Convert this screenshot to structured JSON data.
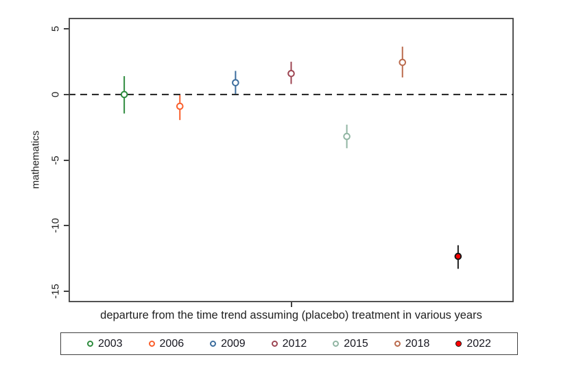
{
  "figure": {
    "background": "#ffffff",
    "frame_color": "#3f3f3f",
    "text_color": "#1f1f1f"
  },
  "chart_data": {
    "type": "scatter",
    "subtype": "coefficient-plot-with-confidence-intervals",
    "title": "",
    "ylabel": "mathematics",
    "xlabel": "departure from the time trend assuming (placebo) treatment in various years",
    "ylim": [
      -15.85,
      5.85
    ],
    "yticks": [
      5,
      0,
      -5,
      -10,
      -15
    ],
    "xtick_fractions": [
      0.5
    ],
    "grid": false,
    "zero_line": {
      "value": 0,
      "style": "dashed",
      "color": "#1f1f1f"
    },
    "legend_position": "bottom",
    "series": [
      {
        "name": "2003",
        "x_fraction": 0.125,
        "value": 0.0,
        "ci_low": -1.45,
        "ci_high": 1.4,
        "color": "#2e8b3e",
        "ci_color": "#2e8b3e",
        "marker": "open-circle"
      },
      {
        "name": "2006",
        "x_fraction": 0.25,
        "value": -0.9,
        "ci_low": -1.95,
        "ci_high": -0.05,
        "color": "#fa5f2c",
        "ci_color": "#fa5f2c",
        "marker": "open-circle"
      },
      {
        "name": "2009",
        "x_fraction": 0.375,
        "value": 0.9,
        "ci_low": 0.05,
        "ci_high": 1.8,
        "color": "#3c6d9d",
        "ci_color": "#3c6d9d",
        "marker": "open-circle"
      },
      {
        "name": "2012",
        "x_fraction": 0.5,
        "value": 1.6,
        "ci_low": 0.8,
        "ci_high": 2.5,
        "color": "#9d4552",
        "ci_color": "#9d4552",
        "marker": "open-circle"
      },
      {
        "name": "2015",
        "x_fraction": 0.625,
        "value": -3.2,
        "ci_low": -4.1,
        "ci_high": -2.3,
        "color": "#90b5a2",
        "ci_color": "#90b5a2",
        "marker": "open-circle"
      },
      {
        "name": "2018",
        "x_fraction": 0.75,
        "value": 2.45,
        "ci_low": 1.3,
        "ci_high": 3.65,
        "color": "#ba6a4c",
        "ci_color": "#ba6a4c",
        "marker": "open-circle"
      },
      {
        "name": "2022",
        "x_fraction": 0.875,
        "value": -12.35,
        "ci_low": -13.3,
        "ci_high": -11.5,
        "color": "#fe0000",
        "ci_color": "#1f1f1f",
        "marker": "filled-circle",
        "marker_outline": "#141414"
      }
    ]
  }
}
